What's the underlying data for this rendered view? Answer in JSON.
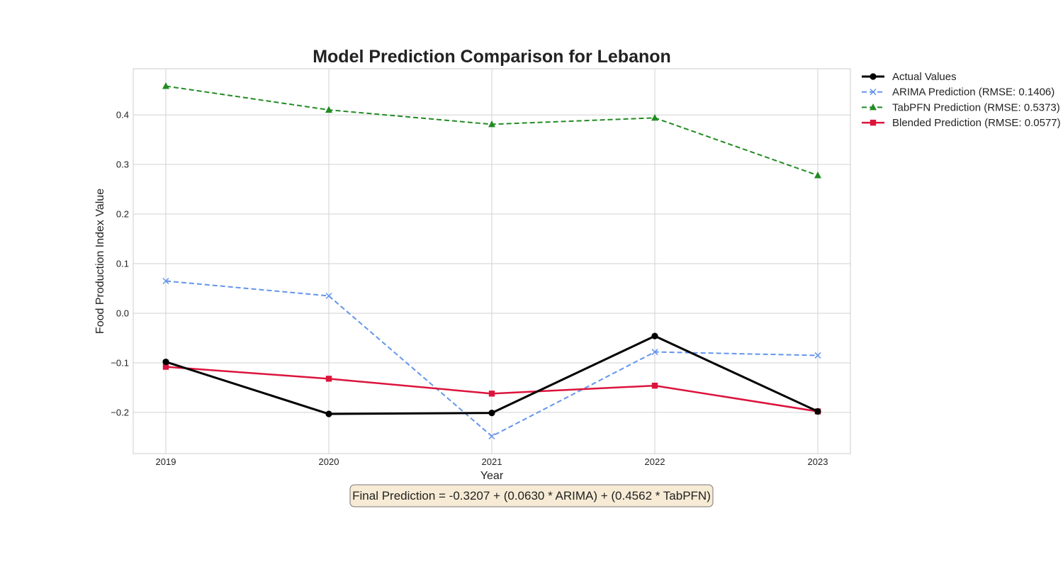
{
  "chart_data": {
    "type": "line",
    "title": "Model Prediction Comparison for Lebanon",
    "xlabel": "Year",
    "ylabel": "Food Production Index Value",
    "categories": [
      "2019",
      "2020",
      "2021",
      "2022",
      "2023"
    ],
    "x": [
      2019,
      2020,
      2021,
      2022,
      2023
    ],
    "xlim": [
      2018.8,
      2023.2
    ],
    "ylim": [
      -0.283,
      0.493
    ],
    "yticks": [
      -0.2,
      -0.1,
      0.0,
      0.1,
      0.2,
      0.3,
      0.4
    ],
    "ytick_labels": [
      "−0.2",
      "−0.1",
      "0.0",
      "0.1",
      "0.2",
      "0.3",
      "0.4"
    ],
    "grid": true,
    "legend_position": "outside-top-right",
    "series": [
      {
        "name": "Actual Values",
        "values": [
          -0.098,
          -0.203,
          -0.201,
          -0.046,
          -0.198
        ],
        "color": "#000000",
        "marker": "circle",
        "linestyle": "solid"
      },
      {
        "name": "ARIMA Prediction (RMSE: 0.1406)",
        "values": [
          0.065,
          0.035,
          -0.248,
          -0.078,
          -0.085
        ],
        "color": "#6495ED",
        "marker": "x",
        "linestyle": "dashed"
      },
      {
        "name": "TabPFN Prediction (RMSE: 0.5373)",
        "values": [
          0.458,
          0.41,
          0.381,
          0.394,
          0.278
        ],
        "color": "#228B22",
        "marker": "triangle",
        "linestyle": "dashed"
      },
      {
        "name": "Blended Prediction (RMSE: 0.0577)",
        "values": [
          -0.108,
          -0.132,
          -0.162,
          -0.146,
          -0.198
        ],
        "color": "#DC143C",
        "marker": "square",
        "linestyle": "solid"
      }
    ],
    "annotation": "Final Prediction = -0.3207 + (0.0630 * ARIMA) + (0.4562 * TabPFN)"
  }
}
